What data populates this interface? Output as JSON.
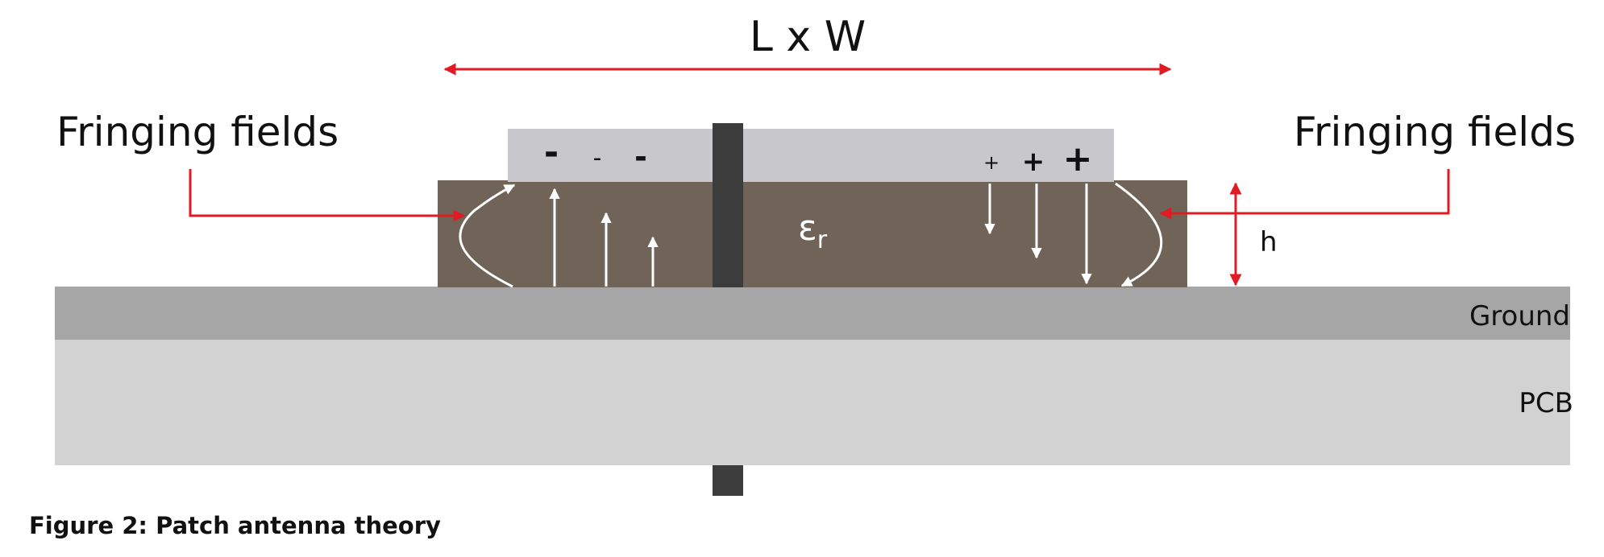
{
  "dimension_label": "L x W",
  "fringing_left": "Fringing fields",
  "fringing_right": "Fringing fields",
  "dielectric_symbol": "ε",
  "dielectric_subscript": "r",
  "height_label": "h",
  "ground_label": "Ground",
  "pcb_label": "PCB",
  "charges_negative": [
    "-",
    "-",
    "-"
  ],
  "charges_positive": [
    "+",
    "+",
    "+"
  ],
  "caption": "Figure 2: Patch antenna theory",
  "colors": {
    "annotation_arrow": "#e01b24",
    "patch": "#c8c8cc",
    "substrate": "#706458",
    "feed": "#3c3c3c",
    "ground": "#a6a6a6",
    "pcb": "#d2d2d2",
    "field_lines": "#ffffff"
  }
}
